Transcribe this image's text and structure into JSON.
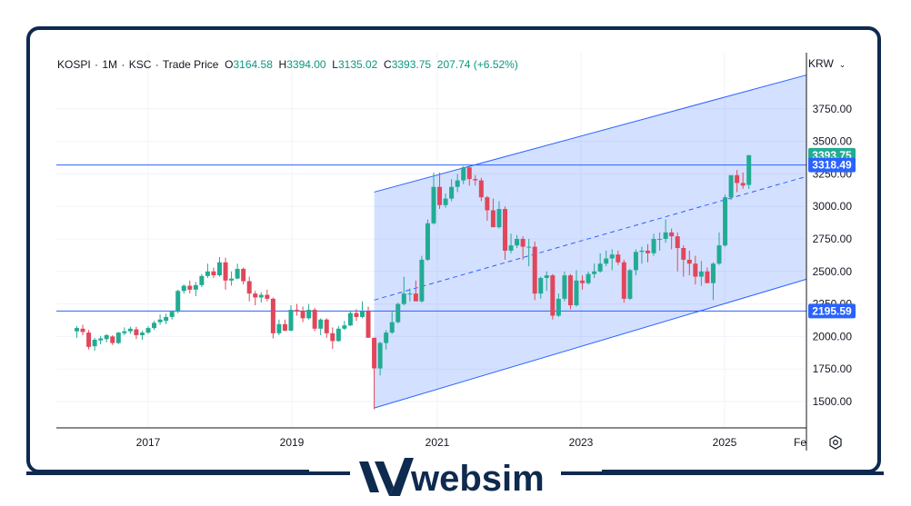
{
  "legend": {
    "symbol": "KOSPI",
    "interval": "1M",
    "exchange": "KSC",
    "price_type": "Trade Price",
    "o_label": "O",
    "o_value": "3164.58",
    "h_label": "H",
    "h_value": "3394.00",
    "l_label": "L",
    "l_value": "3135.02",
    "c_label": "C",
    "c_value": "3393.75",
    "change": "207.74 (+6.52%)"
  },
  "currency": {
    "label": "KRW",
    "icon": "chevron-down-icon"
  },
  "badges": {
    "last_price": "3393.75",
    "upper_line": "3318.49",
    "lower_line": "2195.59"
  },
  "brand": {
    "name": "websim",
    "icon": "websim-logo-icon"
  },
  "colors": {
    "up": "#22ab94",
    "down": "#e0475b",
    "channel": "#2962ff",
    "frame": "#0f2a4f"
  },
  "chart_data": {
    "type": "candlestick",
    "title": "",
    "ylabel": "",
    "xlabel": "",
    "ylim": [
      1300,
      4200
    ],
    "y_ticks": [
      1500,
      1750,
      2000,
      2250,
      2500,
      2750,
      3000,
      3250,
      3500,
      3750
    ],
    "y_tick_labels": [
      "1500.00",
      "1750.00",
      "2000.00",
      "2250.00",
      "2500.00",
      "2750.00",
      "3000.00",
      "3250.00",
      "3500.00",
      "3750.00"
    ],
    "x_ticks": [
      "2017",
      "2019",
      "2021",
      "2023",
      "2025",
      "Fe"
    ],
    "horizontal_lines": [
      3318.49,
      2195.59
    ],
    "regression_channel": {
      "start": "2020-03",
      "end": "2025-09",
      "upper": [
        3110,
        4010
      ],
      "middle": [
        2280,
        3230
      ],
      "lower": [
        1450,
        2440
      ]
    },
    "candles_monthly": [
      [
        2040,
        2080,
        1990,
        2065
      ],
      [
        2060,
        2090,
        2010,
        2035
      ],
      [
        2030,
        2050,
        1900,
        1920
      ],
      [
        1925,
        1990,
        1890,
        1975
      ],
      [
        1970,
        2005,
        1940,
        1985
      ],
      [
        1980,
        2020,
        1955,
        2010
      ],
      [
        2000,
        2010,
        1935,
        1950
      ],
      [
        1950,
        2035,
        1940,
        2030
      ],
      [
        2025,
        2070,
        2010,
        2040
      ],
      [
        2040,
        2075,
        2020,
        2060
      ],
      [
        2055,
        2075,
        1980,
        2010
      ],
      [
        2010,
        2045,
        1975,
        2030
      ],
      [
        2030,
        2080,
        2020,
        2065
      ],
      [
        2065,
        2120,
        2050,
        2105
      ],
      [
        2110,
        2170,
        2090,
        2130
      ],
      [
        2120,
        2175,
        2095,
        2150
      ],
      [
        2150,
        2200,
        2130,
        2190
      ],
      [
        2190,
        2360,
        2180,
        2350
      ],
      [
        2350,
        2400,
        2330,
        2390
      ],
      [
        2390,
        2430,
        2330,
        2360
      ],
      [
        2360,
        2420,
        2310,
        2395
      ],
      [
        2395,
        2480,
        2380,
        2465
      ],
      [
        2465,
        2560,
        2450,
        2500
      ],
      [
        2500,
        2530,
        2450,
        2470
      ],
      [
        2470,
        2610,
        2460,
        2570
      ],
      [
        2570,
        2605,
        2360,
        2430
      ],
      [
        2430,
        2500,
        2390,
        2445
      ],
      [
        2445,
        2560,
        2440,
        2520
      ],
      [
        2520,
        2530,
        2400,
        2425
      ],
      [
        2425,
        2460,
        2270,
        2330
      ],
      [
        2330,
        2350,
        2240,
        2300
      ],
      [
        2300,
        2340,
        2260,
        2320
      ],
      [
        2320,
        2360,
        2270,
        2290
      ],
      [
        2290,
        2300,
        1985,
        2025
      ],
      [
        2025,
        2130,
        2010,
        2095
      ],
      [
        2095,
        2130,
        2040,
        2045
      ],
      [
        2045,
        2240,
        2040,
        2205
      ],
      [
        2205,
        2250,
        2160,
        2195
      ],
      [
        2195,
        2230,
        2110,
        2140
      ],
      [
        2140,
        2250,
        2130,
        2205
      ],
      [
        2205,
        2220,
        2040,
        2060
      ],
      [
        2060,
        2140,
        2010,
        2130
      ],
      [
        2130,
        2140,
        1990,
        2025
      ],
      [
        2025,
        2070,
        1905,
        1965
      ],
      [
        1965,
        2080,
        1960,
        2060
      ],
      [
        2060,
        2120,
        2050,
        2085
      ],
      [
        2085,
        2200,
        2080,
        2180
      ],
      [
        2180,
        2210,
        2120,
        2150
      ],
      [
        2150,
        2270,
        2140,
        2195
      ],
      [
        2195,
        2230,
        2050,
        1990
      ],
      [
        1990,
        1990,
        1440,
        1755
      ],
      [
        1755,
        1960,
        1700,
        1950
      ],
      [
        1950,
        2050,
        1900,
        2030
      ],
      [
        2030,
        2190,
        2020,
        2110
      ],
      [
        2110,
        2260,
        2100,
        2250
      ],
      [
        2250,
        2460,
        2240,
        2330
      ],
      [
        2330,
        2370,
        2270,
        2330
      ],
      [
        2330,
        2430,
        2300,
        2270
      ],
      [
        2270,
        2620,
        2260,
        2590
      ],
      [
        2590,
        2900,
        2580,
        2870
      ],
      [
        2870,
        3260,
        2860,
        3150
      ],
      [
        3150,
        3260,
        2980,
        3010
      ],
      [
        3010,
        3100,
        2990,
        3060
      ],
      [
        3060,
        3210,
        3040,
        3150
      ],
      [
        3150,
        3250,
        3110,
        3200
      ],
      [
        3200,
        3310,
        3170,
        3300
      ],
      [
        3300,
        3310,
        3160,
        3210
      ],
      [
        3210,
        3240,
        3160,
        3200
      ],
      [
        3200,
        3220,
        3040,
        3070
      ],
      [
        3070,
        3080,
        2890,
        2970
      ],
      [
        2970,
        3060,
        2850,
        2840
      ],
      [
        2840,
        3040,
        2830,
        2980
      ],
      [
        2980,
        3000,
        2590,
        2660
      ],
      [
        2660,
        2790,
        2640,
        2700
      ],
      [
        2700,
        2780,
        2680,
        2750
      ],
      [
        2750,
        2770,
        2590,
        2690
      ],
      [
        2690,
        2750,
        2540,
        2690
      ],
      [
        2690,
        2730,
        2280,
        2330
      ],
      [
        2330,
        2460,
        2290,
        2450
      ],
      [
        2450,
        2500,
        2350,
        2470
      ],
      [
        2470,
        2480,
        2130,
        2160
      ],
      [
        2160,
        2330,
        2150,
        2290
      ],
      [
        2290,
        2500,
        2270,
        2470
      ],
      [
        2470,
        2480,
        2210,
        2240
      ],
      [
        2240,
        2510,
        2230,
        2430
      ],
      [
        2430,
        2470,
        2360,
        2410
      ],
      [
        2410,
        2500,
        2400,
        2480
      ],
      [
        2480,
        2560,
        2450,
        2500
      ],
      [
        2500,
        2640,
        2490,
        2560
      ],
      [
        2560,
        2660,
        2540,
        2600
      ],
      [
        2600,
        2670,
        2510,
        2630
      ],
      [
        2630,
        2660,
        2550,
        2570
      ],
      [
        2570,
        2590,
        2260,
        2290
      ],
      [
        2290,
        2520,
        2280,
        2510
      ],
      [
        2510,
        2670,
        2470,
        2650
      ],
      [
        2650,
        2690,
        2560,
        2660
      ],
      [
        2660,
        2710,
        2570,
        2640
      ],
      [
        2640,
        2790,
        2620,
        2750
      ],
      [
        2750,
        2800,
        2660,
        2750
      ],
      [
        2750,
        2900,
        2720,
        2800
      ],
      [
        2800,
        2830,
        2670,
        2770
      ],
      [
        2770,
        2800,
        2500,
        2680
      ],
      [
        2680,
        2700,
        2460,
        2590
      ],
      [
        2590,
        2660,
        2470,
        2560
      ],
      [
        2560,
        2620,
        2400,
        2460
      ],
      [
        2460,
        2580,
        2390,
        2500
      ],
      [
        2500,
        2530,
        2420,
        2410
      ],
      [
        2410,
        2570,
        2280,
        2560
      ],
      [
        2560,
        2800,
        2550,
        2700
      ],
      [
        2700,
        3090,
        2690,
        3070
      ],
      [
        3070,
        3220,
        3050,
        3240
      ],
      [
        3240,
        3280,
        3110,
        3180
      ],
      [
        3180,
        3260,
        3135,
        3160
      ],
      [
        3165,
        3394,
        3135,
        3394
      ]
    ]
  }
}
